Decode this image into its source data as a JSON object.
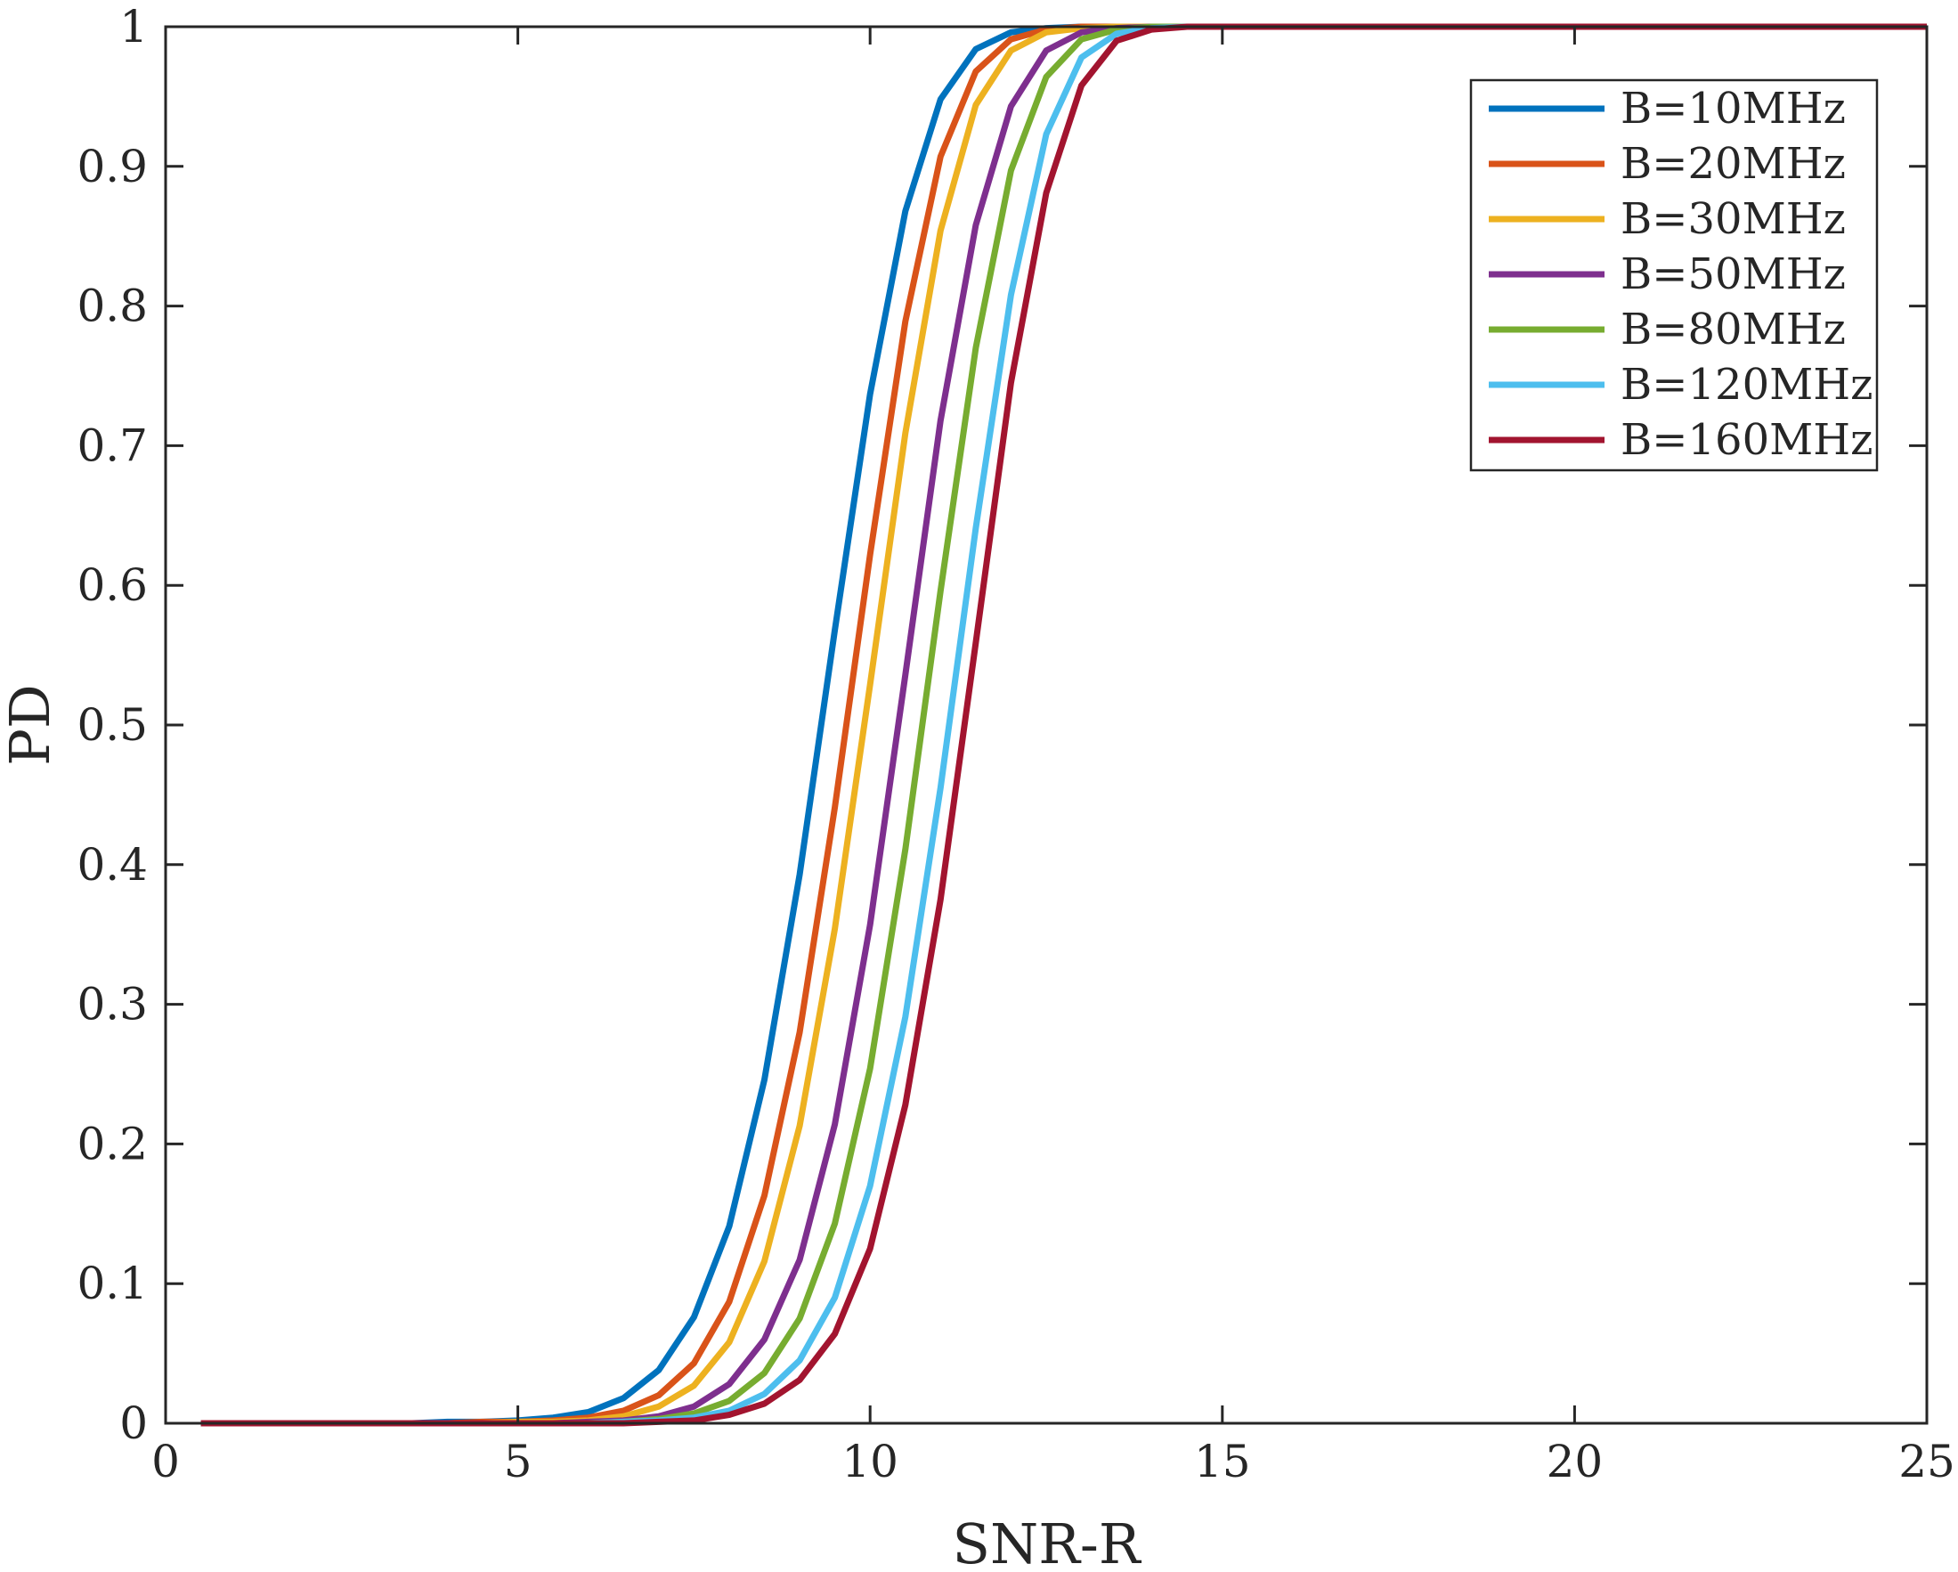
{
  "chart_data": {
    "type": "line",
    "xlabel": "SNR-R",
    "ylabel": "PD",
    "xlim": [
      0,
      25
    ],
    "ylim": [
      0,
      1
    ],
    "xticks": [
      "0",
      "5",
      "10",
      "15",
      "20",
      "25"
    ],
    "yticks": [
      "0",
      "0.1",
      "0.2",
      "0.3",
      "0.4",
      "0.5",
      "0.6",
      "0.7",
      "0.8",
      "0.9",
      "1"
    ],
    "grid": false,
    "legend_position": "top-right",
    "x": [
      0.5,
      1,
      1.5,
      2,
      2.5,
      3,
      3.5,
      4,
      4.5,
      5,
      5.5,
      6,
      6.5,
      7,
      7.5,
      8,
      8.5,
      9,
      9.5,
      10,
      10.5,
      11,
      11.5,
      12,
      12.5,
      13,
      13.5,
      14,
      14.5,
      15,
      15.5,
      16,
      16.5,
      17,
      17.5,
      18,
      18.5,
      19,
      19.5,
      20,
      20.5,
      21,
      21.5,
      22,
      22.5,
      23,
      23.5,
      24,
      24.5,
      25
    ],
    "series": [
      {
        "name": "B=10MHz",
        "color": "#0072BD",
        "values": [
          0,
          0,
          0,
          0,
          0,
          0,
          0,
          0.001,
          0.001,
          0.002,
          0.004,
          0.008,
          0.018,
          0.038,
          0.076,
          0.141,
          0.246,
          0.393,
          0.568,
          0.737,
          0.868,
          0.948,
          0.984,
          0.996,
          0.999,
          1,
          1,
          1,
          1,
          1,
          1,
          1,
          1,
          1,
          1,
          1,
          1,
          1,
          1,
          1,
          1,
          1,
          1,
          1,
          1,
          1,
          1,
          1,
          1,
          1
        ]
      },
      {
        "name": "B=20MHz",
        "color": "#D95319",
        "values": [
          0,
          0,
          0,
          0,
          0,
          0,
          0,
          0,
          0.001,
          0.001,
          0.002,
          0.004,
          0.009,
          0.02,
          0.043,
          0.087,
          0.163,
          0.28,
          0.441,
          0.622,
          0.789,
          0.907,
          0.968,
          0.991,
          0.998,
          1,
          1,
          1,
          1,
          1,
          1,
          1,
          1,
          1,
          1,
          1,
          1,
          1,
          1,
          1,
          1,
          1,
          1,
          1,
          1,
          1,
          1,
          1,
          1,
          1
        ]
      },
      {
        "name": "B=30MHz",
        "color": "#EDB120",
        "values": [
          0,
          0,
          0,
          0,
          0,
          0,
          0,
          0,
          0,
          0.001,
          0.001,
          0.002,
          0.005,
          0.012,
          0.027,
          0.058,
          0.116,
          0.213,
          0.354,
          0.529,
          0.709,
          0.854,
          0.944,
          0.983,
          0.996,
          0.999,
          1,
          1,
          1,
          1,
          1,
          1,
          1,
          1,
          1,
          1,
          1,
          1,
          1,
          1,
          1,
          1,
          1,
          1,
          1,
          1,
          1,
          1,
          1,
          1
        ]
      },
      {
        "name": "B=50MHz",
        "color": "#7E2F8E",
        "values": [
          0,
          0,
          0,
          0,
          0,
          0,
          0,
          0,
          0,
          0,
          0,
          0.001,
          0.002,
          0.005,
          0.012,
          0.028,
          0.06,
          0.117,
          0.214,
          0.357,
          0.536,
          0.718,
          0.858,
          0.943,
          0.983,
          0.996,
          0.999,
          1,
          1,
          1,
          1,
          1,
          1,
          1,
          1,
          1,
          1,
          1,
          1,
          1,
          1,
          1,
          1,
          1,
          1,
          1,
          1,
          1,
          1,
          1
        ]
      },
      {
        "name": "B=80MHz",
        "color": "#77AC30",
        "values": [
          0,
          0,
          0,
          0,
          0,
          0,
          0,
          0,
          0,
          0,
          0,
          0,
          0.001,
          0.003,
          0.007,
          0.016,
          0.036,
          0.075,
          0.143,
          0.254,
          0.411,
          0.596,
          0.77,
          0.897,
          0.964,
          0.991,
          0.998,
          1,
          1,
          1,
          1,
          1,
          1,
          1,
          1,
          1,
          1,
          1,
          1,
          1,
          1,
          1,
          1,
          1,
          1,
          1,
          1,
          1,
          1,
          1
        ]
      },
      {
        "name": "B=120MHz",
        "color": "#4DBEEE",
        "values": [
          0,
          0,
          0,
          0,
          0,
          0,
          0,
          0,
          0,
          0,
          0,
          0,
          0.001,
          0.002,
          0.004,
          0.009,
          0.021,
          0.045,
          0.09,
          0.17,
          0.291,
          0.455,
          0.641,
          0.808,
          0.923,
          0.978,
          0.995,
          0.999,
          1,
          1,
          1,
          1,
          1,
          1,
          1,
          1,
          1,
          1,
          1,
          1,
          1,
          1,
          1,
          1,
          1,
          1,
          1,
          1,
          1,
          1
        ]
      },
      {
        "name": "B=160MHz",
        "color": "#A2142F",
        "values": [
          0,
          0,
          0,
          0,
          0,
          0,
          0,
          0,
          0,
          0,
          0,
          0,
          0,
          0.001,
          0.002,
          0.006,
          0.014,
          0.031,
          0.064,
          0.125,
          0.228,
          0.375,
          0.559,
          0.745,
          0.881,
          0.958,
          0.99,
          0.998,
          1,
          1,
          1,
          1,
          1,
          1,
          1,
          1,
          1,
          1,
          1,
          1,
          1,
          1,
          1,
          1,
          1,
          1,
          1,
          1,
          1,
          1
        ]
      }
    ]
  }
}
